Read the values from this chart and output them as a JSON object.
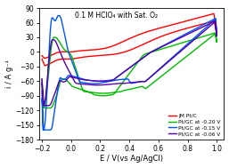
{
  "title": "0.1 M HClO₄ with Sat. O₂",
  "xlabel": "E / V(vs Ag/AgCl)",
  "ylabel": "i / A g⁻¹",
  "xlim": [
    -0.22,
    1.05
  ],
  "ylim": [
    -180,
    90
  ],
  "xticks": [
    -0.2,
    0.0,
    0.2,
    0.4,
    0.6,
    0.8,
    1.0
  ],
  "yticks": [
    -180,
    -150,
    -120,
    -90,
    -60,
    -30,
    0,
    30,
    60,
    90
  ],
  "legend": [
    {
      "label": "JM Pt/C",
      "color": "#ff0000"
    },
    {
      "label": "Pt/GC at -0.20 V",
      "color": "#00bb00"
    },
    {
      "label": "Pt/GC at -0.15 V",
      "color": "#0055ff"
    },
    {
      "label": "Pt/GC at -0.06 V",
      "color": "#5500aa"
    }
  ],
  "background_color": "#ffffff"
}
